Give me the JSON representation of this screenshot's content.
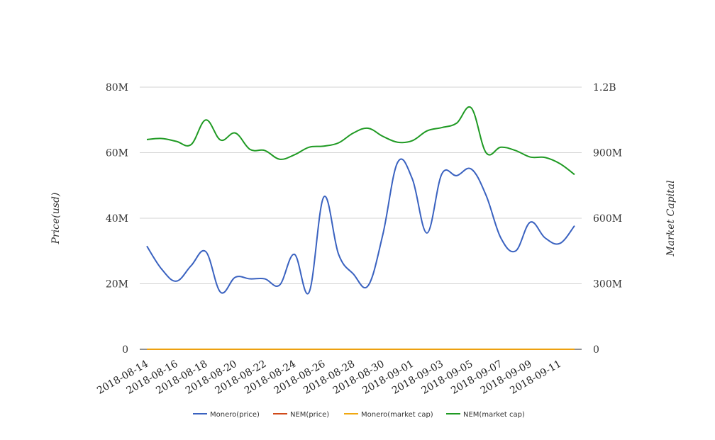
{
  "chart_data": {
    "type": "line",
    "x": [
      "2018-08-14",
      "2018-08-15",
      "2018-08-16",
      "2018-08-17",
      "2018-08-18",
      "2018-08-19",
      "2018-08-20",
      "2018-08-21",
      "2018-08-22",
      "2018-08-23",
      "2018-08-24",
      "2018-08-25",
      "2018-08-26",
      "2018-08-27",
      "2018-08-28",
      "2018-08-29",
      "2018-08-30",
      "2018-08-31",
      "2018-09-01",
      "2018-09-02",
      "2018-09-03",
      "2018-09-04",
      "2018-09-05",
      "2018-09-06",
      "2018-09-07",
      "2018-09-08",
      "2018-09-09",
      "2018-09-10",
      "2018-09-11",
      "2018-09-12"
    ],
    "xticks": [
      "2018-08-14",
      "2018-08-16",
      "2018-08-18",
      "2018-08-20",
      "2018-08-22",
      "2018-08-24",
      "2018-08-26",
      "2018-08-28",
      "2018-08-30",
      "2018-09-01",
      "2018-09-03",
      "2018-09-05",
      "2018-09-07",
      "2018-09-09",
      "2018-09-11"
    ],
    "ylabel": "Price(usd)",
    "y2label": "Market Capital",
    "ylim": [
      0,
      80000000
    ],
    "y2lim": [
      0,
      1200000000
    ],
    "yticks": [
      {
        "value": 0,
        "label": "0"
      },
      {
        "value": 20000000,
        "label": "20M"
      },
      {
        "value": 40000000,
        "label": "40M"
      },
      {
        "value": 60000000,
        "label": "60M"
      },
      {
        "value": 80000000,
        "label": "80M"
      }
    ],
    "y2ticks": [
      {
        "value": 0,
        "label": "0"
      },
      {
        "value": 300000000,
        "label": "300M"
      },
      {
        "value": 600000000,
        "label": "600M"
      },
      {
        "value": 900000000,
        "label": "900M"
      },
      {
        "value": 1200000000,
        "label": "1.2B"
      }
    ],
    "grid": true,
    "legend_position": "bottom",
    "series": [
      {
        "name": "Monero(price)",
        "axis": "left",
        "color": "#3a62c0",
        "values": [
          31500000,
          24500000,
          20800000,
          25500000,
          29800000,
          17400000,
          22000000,
          21500000,
          21500000,
          19600000,
          29000000,
          17400000,
          46500000,
          29000000,
          23000000,
          19400000,
          35000000,
          57000000,
          52000000,
          35500000,
          53500000,
          53000000,
          55000000,
          47000000,
          34000000,
          30000000,
          38800000,
          34000000,
          32300000,
          37700000
        ]
      },
      {
        "name": "NEM(price)",
        "axis": "left",
        "color": "#d04a1a",
        "values": [
          0.1,
          0.1,
          0.1,
          0.1,
          0.1,
          0.1,
          0.1,
          0.1,
          0.1,
          0.1,
          0.1,
          0.1,
          0.1,
          0.1,
          0.1,
          0.1,
          0.1,
          0.1,
          0.1,
          0.1,
          0.1,
          0.1,
          0.1,
          0.1,
          0.1,
          0.1,
          0.1,
          0.1,
          0.1,
          0.1
        ]
      },
      {
        "name": "Monero(market cap)",
        "axis": "right",
        "color": "#f0a810",
        "values": [
          500000,
          500000,
          500000,
          500000,
          500000,
          500000,
          500000,
          500000,
          500000,
          500000,
          500000,
          500000,
          500000,
          500000,
          500000,
          500000,
          500000,
          500000,
          500000,
          500000,
          500000,
          500000,
          500000,
          500000,
          500000,
          500000,
          500000,
          500000,
          500000,
          500000
        ]
      },
      {
        "name": "NEM(market cap)",
        "axis": "right",
        "color": "#1f9a23",
        "values": [
          960000000,
          965000000,
          952000000,
          937000000,
          1050000000,
          958000000,
          990000000,
          915000000,
          910000000,
          870000000,
          890000000,
          925000000,
          930000000,
          945000000,
          990000000,
          1012000000,
          975000000,
          948000000,
          955000000,
          1000000000,
          1015000000,
          1035000000,
          1105000000,
          900000000,
          925000000,
          910000000,
          880000000,
          878000000,
          850000000,
          800000000
        ]
      }
    ]
  }
}
